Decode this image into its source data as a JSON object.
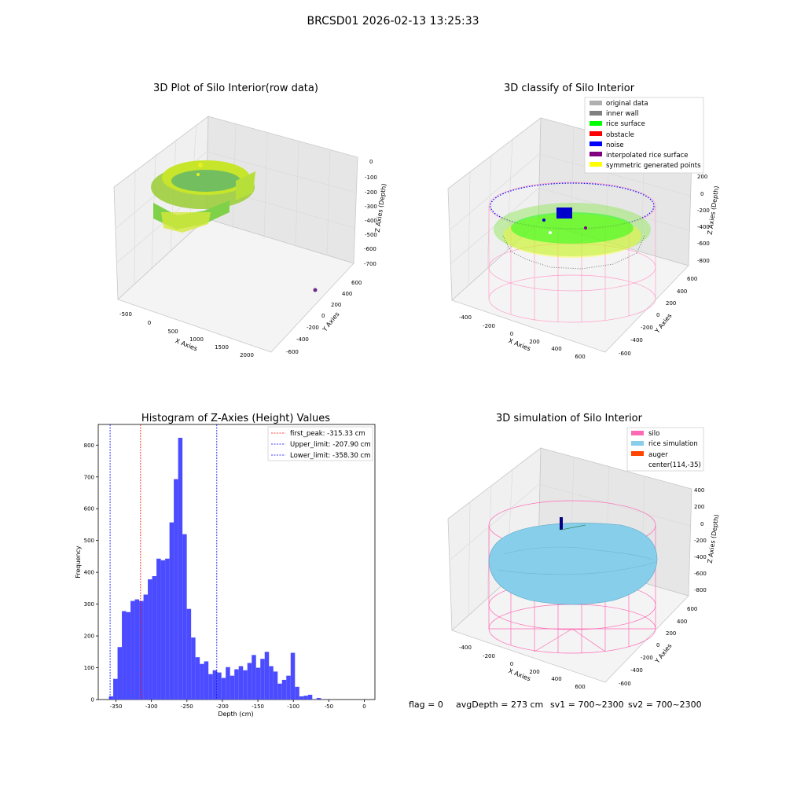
{
  "figure_title": "BRCSD01 2026-02-13 13:25:33",
  "footer": {
    "flag": "flag = 0",
    "avg_depth": "avgDepth = 273 cm",
    "sv1": "sv1 = 700~2300",
    "sv2": "sv2 = 700~2300"
  },
  "panel1": {
    "title": "3D Plot of Silo Interior(row data)",
    "xlabel": "X Axies",
    "ylabel": "Y Axies",
    "zlabel": "Z Axies (Depth)",
    "x_ticks": [
      "-500",
      "0",
      "500",
      "1000",
      "1500",
      "2000"
    ],
    "y_ticks": [
      "600",
      "400",
      "200",
      "0",
      "-200",
      "-400",
      "-600"
    ],
    "z_ticks": [
      "0",
      "-100",
      "-200",
      "-300",
      "-400",
      "-500",
      "-600",
      "-700"
    ]
  },
  "panel2": {
    "title": "3D classify of Silo Interior",
    "xlabel": "X Axies",
    "ylabel": "Y Axies",
    "zlabel": "Z Axies (Depth)",
    "x_ticks": [
      "-400",
      "-200",
      "0",
      "200",
      "400",
      "600"
    ],
    "y_ticks": [
      "600",
      "400",
      "200",
      "0",
      "-200",
      "-400",
      "-600"
    ],
    "z_ticks": [
      "200",
      "0",
      "-200",
      "-400",
      "-600",
      "-800"
    ],
    "legend": [
      {
        "label": "original data",
        "color": "#b0b0b0"
      },
      {
        "label": "inner wall",
        "color": "#808080"
      },
      {
        "label": "rice surface",
        "color": "#00ff00"
      },
      {
        "label": "obstacle",
        "color": "#ff0000"
      },
      {
        "label": "noise",
        "color": "#0000ff"
      },
      {
        "label": "interpolated rice surface",
        "color": "#800080"
      },
      {
        "label": "symmetric generated points",
        "color": "#ffff00"
      }
    ]
  },
  "panel4": {
    "title": "3D simulation of Silo Interior",
    "xlabel": "X Axies",
    "ylabel": "Y Axies",
    "zlabel": "Z Axies (Depth)",
    "x_ticks": [
      "-400",
      "-200",
      "0",
      "200",
      "400",
      "600"
    ],
    "y_ticks": [
      "600",
      "400",
      "200",
      "0",
      "-200",
      "-400",
      "-600"
    ],
    "z_ticks": [
      "400",
      "200",
      "0",
      "-200",
      "-400",
      "-600",
      "-800"
    ],
    "legend": [
      {
        "label": "silo",
        "color": "#ff69b4"
      },
      {
        "label": "rice simulation",
        "color": "#87ceeb"
      },
      {
        "label": "auger",
        "color": "#ff4500"
      },
      {
        "label": "center(114,-35)",
        "color": ""
      }
    ]
  },
  "chart_data": {
    "type": "bar",
    "title": "Histogram of Z-Axies (Height) Values",
    "xlabel": "Depth (cm)",
    "ylabel": "Frequency",
    "bar_color": "#4b4bff",
    "bin_start": -360,
    "bin_width": 6.1,
    "values": [
      10,
      65,
      165,
      278,
      275,
      310,
      315,
      310,
      330,
      378,
      388,
      443,
      438,
      443,
      557,
      693,
      823,
      520,
      285,
      195,
      133,
      112,
      120,
      80,
      92,
      85,
      68,
      102,
      75,
      95,
      105,
      92,
      115,
      140,
      100,
      128,
      150,
      105,
      88,
      50,
      62,
      75,
      147,
      40,
      10,
      12,
      15,
      0,
      5
    ],
    "xlim": [
      -375,
      15
    ],
    "ylim": [
      0,
      865
    ],
    "x_ticks": [
      -350,
      -300,
      -250,
      -200,
      -150,
      -100,
      -50,
      0
    ],
    "y_ticks": [
      0,
      100,
      200,
      300,
      400,
      500,
      600,
      700,
      800
    ],
    "lines": [
      {
        "value": -315.33,
        "label": "first_peak: -315.33 cm",
        "color": "#ff0000"
      },
      {
        "value": -207.9,
        "label": "Upper_limit: -207.90 cm",
        "color": "#0000ff"
      },
      {
        "value": -358.3,
        "label": "Lower_limit: -358.30 cm",
        "color": "#0000ff"
      }
    ]
  }
}
